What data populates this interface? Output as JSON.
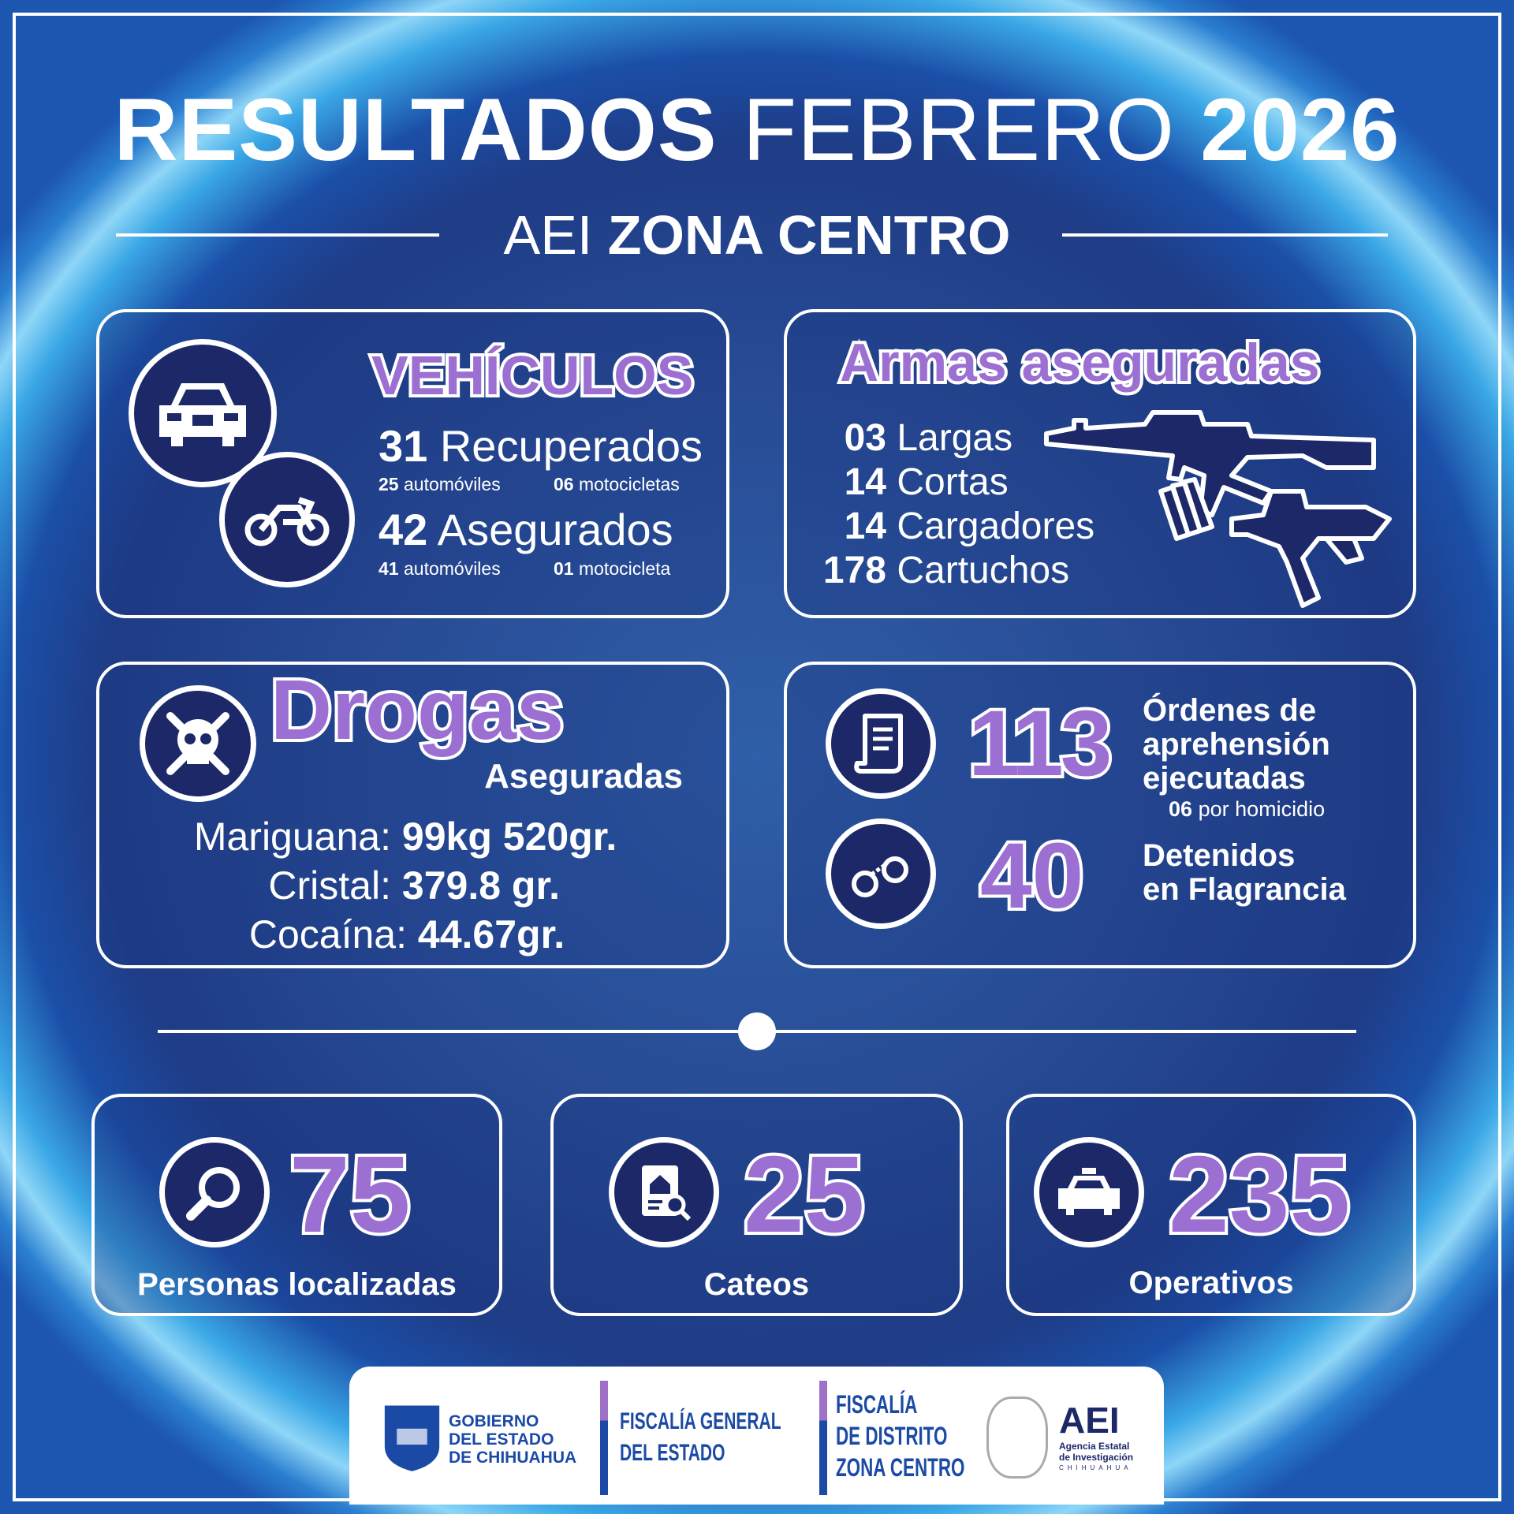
{
  "header": {
    "title_bold": "RESULTADOS",
    "title_thin": "FEBRERO",
    "title_year": "2026",
    "subtitle_thin": "AEI",
    "subtitle_bold": "ZONA CENTRO"
  },
  "vehiculos": {
    "title": "VEHÍCULOS",
    "recuperados": {
      "count": "31",
      "label": "Recuperados",
      "autos_count": "25",
      "autos_label": "automóviles",
      "motos_count": "06",
      "motos_label": "motocicletas"
    },
    "asegurados": {
      "count": "42",
      "label": "Asegurados",
      "autos_count": "41",
      "autos_label": "automóviles",
      "motos_count": "01",
      "motos_label": "motocicleta"
    },
    "icons": [
      "car-icon",
      "motorcycle-icon"
    ]
  },
  "armas": {
    "title": "Armas aseguradas",
    "items": [
      {
        "count": "03",
        "label": "Largas"
      },
      {
        "count": "14",
        "label": "Cortas"
      },
      {
        "count": "14",
        "label": "Cargadores"
      },
      {
        "count": "178",
        "label": "Cartuchos"
      }
    ]
  },
  "drogas": {
    "title": "Drogas",
    "subtitle": "Aseguradas",
    "items": [
      {
        "label": "Mariguana:",
        "value": "99kg 520gr."
      },
      {
        "label": "Cristal:",
        "value": "379.8 gr."
      },
      {
        "label": "Cocaína:",
        "value": "44.67gr."
      }
    ]
  },
  "ordenes": {
    "count": "113",
    "lines": [
      "Órdenes de",
      "aprehensión",
      "ejecutadas"
    ],
    "note_count": "06",
    "note_label": "por homicidio"
  },
  "detenidos": {
    "count": "40",
    "lines": [
      "Detenidos",
      "en Flagrancia"
    ]
  },
  "bottom": [
    {
      "count": "75",
      "label": "Personas localizadas",
      "icon": "magnifier-icon"
    },
    {
      "count": "25",
      "label": "Cateos",
      "icon": "house-search-icon"
    },
    {
      "count": "235",
      "label": "Operativos",
      "icon": "police-car-icon"
    }
  ],
  "footer": {
    "gob": [
      "GOBIERNO",
      "DEL ESTADO",
      "DE CHIHUAHUA"
    ],
    "fge": [
      "FISCALÍA GENERAL",
      "DEL ESTADO"
    ],
    "fdz": [
      "FISCALÍA",
      "DE DISTRITO",
      "ZONA CENTRO"
    ],
    "aei": "AEI",
    "aei_sub": [
      "Agencia Estatal",
      "de Investigación"
    ],
    "aei_loc": "CHIHUAHUA"
  },
  "colors": {
    "accent_purple": "#9c6fd2",
    "navy": "#1c2868",
    "background": "#274a94"
  }
}
